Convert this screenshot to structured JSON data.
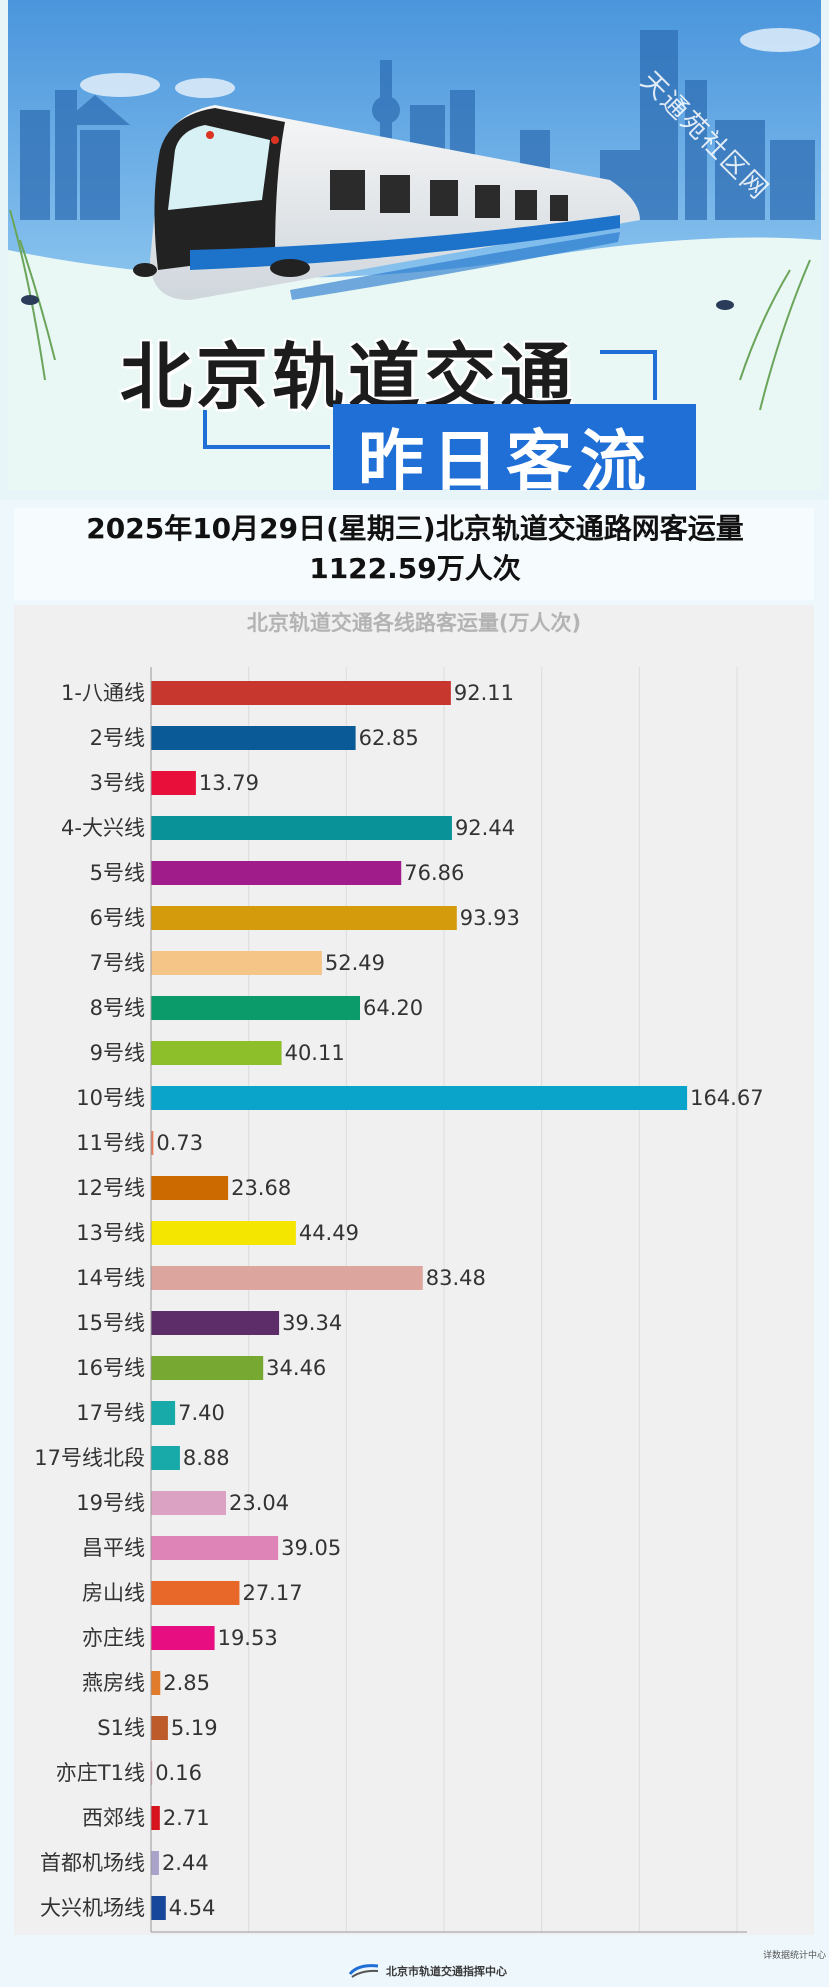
{
  "banner": {
    "watermark": "天通苑社区网",
    "title_line1": "北京轨道交通",
    "title_line2": "昨日客流"
  },
  "summary": {
    "text": "2025年10月29日(星期三)北京轨道交通路网客运量1122.59万人次"
  },
  "footer": {
    "logo_text": "北京市轨道交通指挥中心",
    "source": "详数据统计中心"
  },
  "colors": {
    "bar_colors": [
      "#c8372d",
      "#0a5a98",
      "#e8103b",
      "#0a9299",
      "#a01c8a",
      "#d49b0c",
      "#f5c587",
      "#0b9a6a",
      "#8dbf2a",
      "#0aa3c9",
      "#e87a5e",
      "#cc6a00",
      "#f5e600",
      "#dca59d",
      "#5c2d68",
      "#76a832",
      "#18a9a9",
      "#18a9a9",
      "#dca2c4",
      "#df84b7",
      "#e8682a",
      "#e60e80",
      "#e07c2c",
      "#bd5b2a",
      "#e8a0ae",
      "#d7141e",
      "#a9a3c9",
      "#17479a"
    ]
  },
  "chart_data": {
    "type": "bar",
    "orientation": "horizontal",
    "title": "北京轨道交通各线路客运量(万人次)",
    "categories": [
      "1-八通线",
      "2号线",
      "3号线",
      "4-大兴线",
      "5号线",
      "6号线",
      "7号线",
      "8号线",
      "9号线",
      "10号线",
      "11号线",
      "12号线",
      "13号线",
      "14号线",
      "15号线",
      "16号线",
      "17号线",
      "17号线北段",
      "19号线",
      "昌平线",
      "房山线",
      "亦庄线",
      "燕房线",
      "S1线",
      "亦庄T1线",
      "西郊线",
      "首都机场线",
      "大兴机场线"
    ],
    "values": [
      92.11,
      62.85,
      13.79,
      92.44,
      76.86,
      93.93,
      52.49,
      64.2,
      40.11,
      164.67,
      0.73,
      23.68,
      44.49,
      83.48,
      39.34,
      34.46,
      7.4,
      8.88,
      23.04,
      39.05,
      27.17,
      19.53,
      2.85,
      5.19,
      0.16,
      2.71,
      2.44,
      4.54
    ],
    "value_labels": [
      "92.11",
      "62.85",
      "13.79",
      "92.44",
      "76.86",
      "93.93",
      "52.49",
      "64.20",
      "40.11",
      "164.67",
      "0.73",
      "23.68",
      "44.49",
      "83.48",
      "39.34",
      "34.46",
      "7.40",
      "8.88",
      "23.04",
      "39.05",
      "27.17",
      "19.53",
      "2.85",
      "5.19",
      "0.16",
      "2.71",
      "2.44",
      "4.54"
    ],
    "xlim": [
      0,
      180
    ],
    "xticks": [
      "0",
      "30",
      "60",
      "90",
      "120",
      "150",
      "180"
    ],
    "grid": true
  }
}
